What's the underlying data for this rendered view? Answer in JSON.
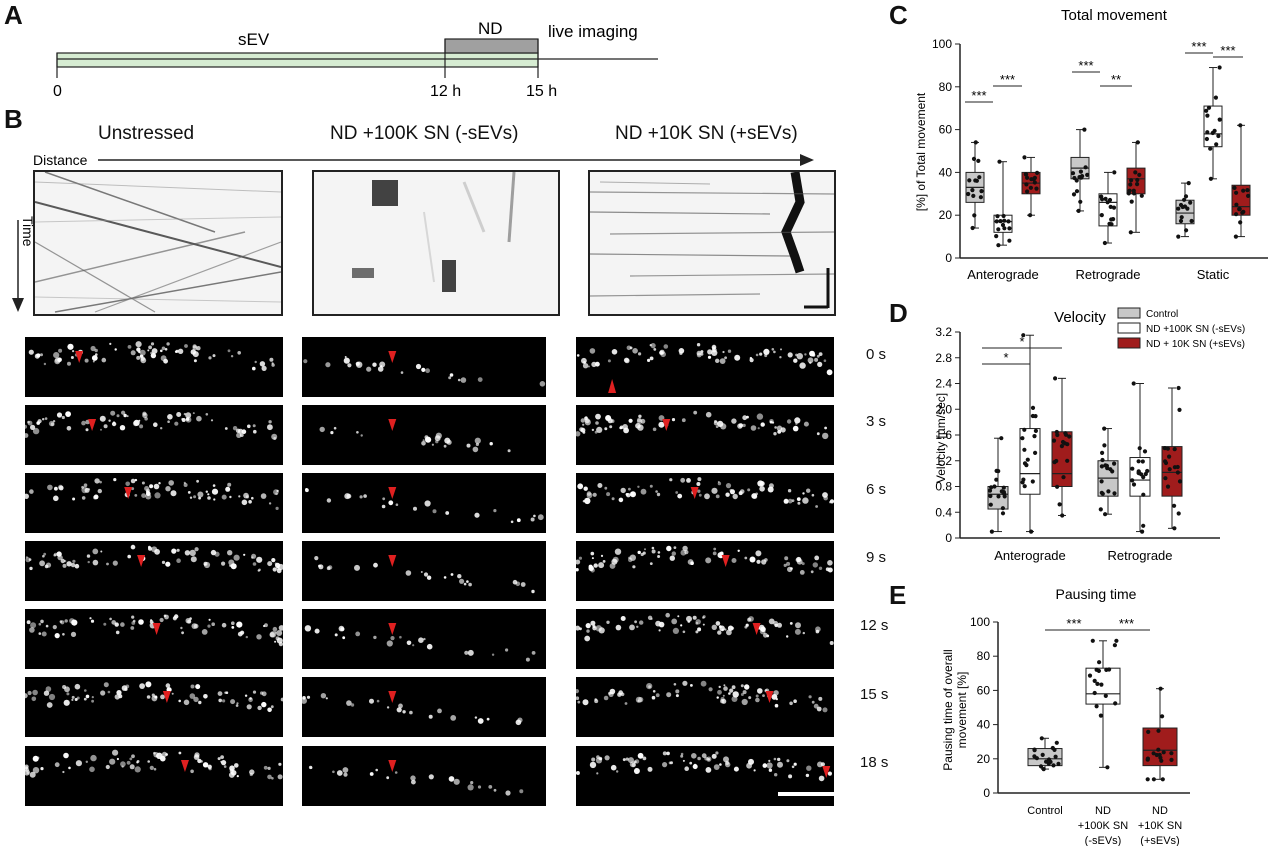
{
  "panels": {
    "a": "A",
    "b": "B",
    "c": "C",
    "d": "D",
    "e": "E"
  },
  "panel_a": {
    "sev": "sEV",
    "nd": "ND",
    "live": "live imaging",
    "t0": "0",
    "t12": "12 h",
    "t15": "15 h"
  },
  "panel_b": {
    "col1": "Unstressed",
    "col2": "ND +100K SN (-sEVs)",
    "col3": "ND +10K SN (+sEVs)",
    "distance": "Distance",
    "time": "Time",
    "timepoints": [
      "0 s",
      "3 s",
      "6 s",
      "9 s",
      "12 s",
      "15 s",
      "18 s"
    ]
  },
  "colors": {
    "control": "#c8c8c8",
    "no_sev": "#ffffff",
    "sev": "#a01c1c",
    "arrow": "#e02020",
    "timeline": "#d6ecd2",
    "nd_bar": "#a0a0a0"
  },
  "chart_data": [
    {
      "type": "box",
      "title": "Total movement",
      "ylabel": "[%] of Total movement",
      "ylim": [
        0,
        100
      ],
      "yticks": [
        "0",
        "20",
        "40",
        "60",
        "80",
        "100"
      ],
      "categories": [
        "Anterograde",
        "Retrograde",
        "Static"
      ],
      "series": [
        {
          "name": "Control",
          "boxes": [
            {
              "min": 14,
              "q1": 26,
              "med": 33,
              "q3": 40,
              "max": 54
            },
            {
              "min": 22,
              "q1": 37,
              "med": 42,
              "q3": 47,
              "max": 60
            },
            {
              "min": 10,
              "q1": 16,
              "med": 21,
              "q3": 27,
              "max": 35
            }
          ]
        },
        {
          "name": "ND +100K SN (-sEVs)",
          "boxes": [
            {
              "min": 6,
              "q1": 12,
              "med": 17,
              "q3": 20,
              "max": 45
            },
            {
              "min": 7,
              "q1": 15,
              "med": 26,
              "q3": 30,
              "max": 40
            },
            {
              "min": 37,
              "q1": 52,
              "med": 58,
              "q3": 71,
              "max": 89
            }
          ]
        },
        {
          "name": "ND + 10K SN (+sEVs)",
          "boxes": [
            {
              "min": 20,
              "q1": 30,
              "med": 35,
              "q3": 40,
              "max": 47
            },
            {
              "min": 12,
              "q1": 30,
              "med": 37,
              "q3": 42,
              "max": 54
            },
            {
              "min": 10,
              "q1": 20,
              "med": 24,
              "q3": 34,
              "max": 62
            }
          ]
        }
      ],
      "significance": [
        "***",
        "***",
        "***",
        "**",
        "***",
        "***"
      ]
    },
    {
      "type": "box",
      "title": "Velocity",
      "ylabel": "Velocity [µm/sec]",
      "ylim": [
        0,
        3.2
      ],
      "yticks": [
        "0",
        "0.4",
        "0.8",
        "1.2",
        "1.6",
        "2.0",
        "2.4",
        "2.8",
        "3.2"
      ],
      "categories": [
        "Anterograde",
        "Retrograde"
      ],
      "legend": [
        "Control",
        "ND +100K SN (-sEVs)",
        "ND + 10K SN (+sEVs)"
      ],
      "series": [
        {
          "name": "Control",
          "boxes": [
            {
              "min": 0.1,
              "q1": 0.45,
              "med": 0.68,
              "q3": 0.8,
              "max": 1.55
            },
            {
              "min": 0.37,
              "q1": 0.65,
              "med": 0.93,
              "q3": 1.2,
              "max": 1.7
            }
          ]
        },
        {
          "name": "ND +100K SN (-sEVs)",
          "boxes": [
            {
              "min": 0.1,
              "q1": 0.68,
              "med": 1.0,
              "q3": 1.7,
              "max": 3.15
            },
            {
              "min": 0.1,
              "q1": 0.65,
              "med": 0.9,
              "q3": 1.25,
              "max": 2.4
            }
          ]
        },
        {
          "name": "ND + 10K SN (+sEVs)",
          "boxes": [
            {
              "min": 0.35,
              "q1": 0.8,
              "med": 1.0,
              "q3": 1.65,
              "max": 2.48
            },
            {
              "min": 0.15,
              "q1": 0.65,
              "med": 1.02,
              "q3": 1.42,
              "max": 2.33
            }
          ]
        }
      ],
      "significance": [
        "*",
        "*"
      ]
    },
    {
      "type": "box",
      "title": "Pausing time",
      "ylabel": "Pausing time of overall movement [%]",
      "ylim": [
        0,
        100
      ],
      "yticks": [
        "0",
        "20",
        "40",
        "60",
        "80",
        "100"
      ],
      "categories": [
        "Control",
        "ND +100K SN (-sEVs)",
        "ND +10K SN (+sEVs)"
      ],
      "cat_lines": [
        [
          "Control"
        ],
        [
          "ND",
          "+100K SN",
          "(-sEVs)"
        ],
        [
          "ND",
          "+10K SN",
          "(+sEVs)"
        ]
      ],
      "boxes": [
        {
          "min": 14,
          "q1": 16,
          "med": 20,
          "q3": 26,
          "max": 32
        },
        {
          "min": 15,
          "q1": 52,
          "med": 58,
          "q3": 73,
          "max": 89
        },
        {
          "min": 8,
          "q1": 16,
          "med": 25,
          "q3": 38,
          "max": 61
        }
      ],
      "significance": [
        "***",
        "***"
      ]
    }
  ]
}
